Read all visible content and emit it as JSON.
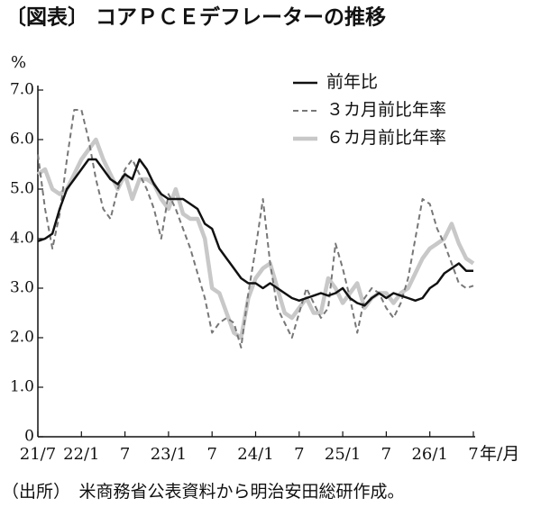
{
  "chart_data": {
    "type": "line",
    "title": "〔図表〕 コアＰＣＥデフレーターの推移",
    "y_label": "%",
    "x_unit": "年/月",
    "source": "（出所）　米商務省公表資料から明治安田総研作成。",
    "categories": [
      "21/7",
      null,
      null,
      null,
      null,
      null,
      "22/1",
      null,
      null,
      null,
      null,
      null,
      "7",
      null,
      null,
      null,
      null,
      null,
      "23/1",
      null,
      null,
      null,
      null,
      null,
      "7",
      null,
      null,
      null,
      null,
      null,
      "24/1",
      null,
      null,
      null,
      null,
      null,
      "7",
      null,
      null,
      null,
      null,
      null,
      "25/1",
      null,
      null,
      null,
      null,
      null,
      "7",
      null,
      null,
      null,
      null,
      null,
      "26/1",
      null,
      null,
      null,
      null,
      null,
      "7"
    ],
    "ylim": [
      0,
      7
    ],
    "yticks": [
      0,
      {
        "value": 1,
        "label": "1.0"
      },
      {
        "value": 2,
        "label": "2.0"
      },
      {
        "value": 3,
        "label": "3.0"
      },
      {
        "value": 4,
        "label": "4.0"
      },
      {
        "value": 5,
        "label": "5.0"
      },
      {
        "value": 6,
        "label": "6.0"
      },
      {
        "value": 7,
        "label": "7.0"
      }
    ],
    "legend": "upper right",
    "series": [
      {
        "name": "前年比",
        "color": "#111111",
        "style": "solid",
        "values": [
          3.95,
          4.0,
          4.1,
          4.6,
          5.0,
          5.2,
          5.4,
          5.6,
          5.6,
          5.4,
          5.2,
          5.1,
          5.3,
          5.2,
          5.6,
          5.4,
          5.1,
          4.9,
          4.8,
          4.8,
          4.8,
          4.7,
          4.6,
          4.3,
          4.2,
          3.8,
          3.6,
          3.4,
          3.2,
          3.1,
          3.1,
          3.0,
          3.1,
          3.0,
          2.9,
          2.8,
          2.75,
          2.8,
          2.85,
          2.9,
          2.85,
          2.9,
          3.0,
          2.8,
          2.7,
          2.65,
          2.8,
          2.9,
          2.8,
          2.9,
          2.85,
          2.8,
          2.75,
          2.8,
          3.0,
          3.1,
          3.3,
          3.4,
          3.5,
          3.35,
          3.35
        ]
      },
      {
        "name": "３カ月前比年率",
        "color": "#777777",
        "style": "dashed",
        "values": [
          5.7,
          4.6,
          3.8,
          4.5,
          5.6,
          6.6,
          6.6,
          6.0,
          5.2,
          4.6,
          4.4,
          5.0,
          5.4,
          5.6,
          5.3,
          5.0,
          4.6,
          4.0,
          4.9,
          4.6,
          4.2,
          3.8,
          3.3,
          2.8,
          2.1,
          2.3,
          2.4,
          2.3,
          1.8,
          2.9,
          3.8,
          4.8,
          3.5,
          2.6,
          2.3,
          2.0,
          2.5,
          3.0,
          2.7,
          2.4,
          2.6,
          3.9,
          3.4,
          2.8,
          2.1,
          2.8,
          3.0,
          2.9,
          2.6,
          2.4,
          2.7,
          3.2,
          4.0,
          4.8,
          4.7,
          4.2,
          3.9,
          3.5,
          3.1,
          3.0,
          3.05
        ]
      },
      {
        "name": "６カ月前比年率",
        "color": "#c8c8c8",
        "style": "thick",
        "values": [
          5.3,
          5.4,
          5.0,
          4.9,
          5.0,
          5.3,
          5.6,
          5.8,
          6.0,
          5.6,
          5.3,
          5.0,
          5.3,
          4.8,
          5.2,
          5.2,
          5.1,
          4.8,
          4.6,
          5.0,
          4.5,
          4.4,
          4.4,
          4.0,
          3.0,
          2.9,
          2.5,
          2.1,
          2.0,
          2.8,
          3.2,
          3.4,
          3.5,
          3.0,
          2.5,
          2.4,
          2.6,
          2.8,
          2.5,
          2.5,
          3.2,
          3.0,
          2.7,
          2.9,
          3.1,
          2.6,
          2.8,
          2.9,
          2.9,
          2.7,
          2.9,
          3.0,
          3.3,
          3.6,
          3.8,
          3.9,
          4.0,
          4.3,
          3.9,
          3.6,
          3.5
        ]
      }
    ]
  }
}
